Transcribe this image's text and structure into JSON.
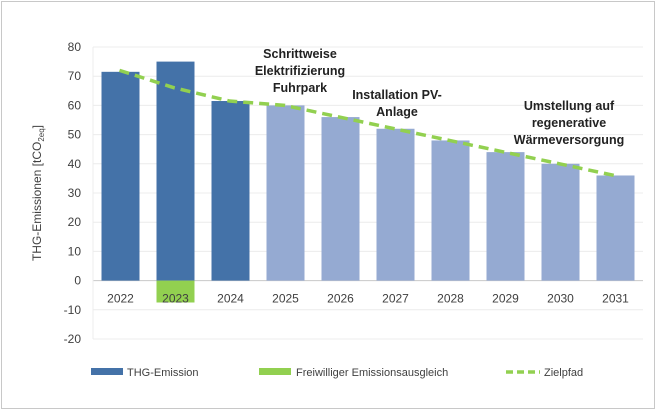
{
  "chart_data": {
    "type": "bar",
    "title": "",
    "xlabel": "",
    "ylabel": "THG-Emissionen [tCO2eq]",
    "ylabel_parts": {
      "main": "THG-Emissionen [tCO",
      "sub": "2eq",
      "end": "]"
    },
    "ylim": [
      -20,
      80
    ],
    "yticks": [
      80,
      70,
      60,
      50,
      40,
      30,
      20,
      10,
      0,
      -10,
      -20
    ],
    "grid": true,
    "categories": [
      "2022",
      "2023",
      "2024",
      "2025",
      "2026",
      "2027",
      "2028",
      "2029",
      "2030",
      "2031"
    ],
    "series": [
      {
        "name": "THG-Emission",
        "type": "bar",
        "values": [
          71.5,
          75,
          61.5,
          60,
          56,
          52,
          48,
          44,
          40,
          36
        ],
        "colors": [
          "#4472a8",
          "#4472a8",
          "#4472a8",
          "#95aad2",
          "#95aad2",
          "#95aad2",
          "#95aad2",
          "#95aad2",
          "#95aad2",
          "#95aad2"
        ]
      },
      {
        "name": "Freiwilliger Emissionsausgleich",
        "type": "bar",
        "values": [
          0,
          -7.5,
          0,
          0,
          0,
          0,
          0,
          0,
          0,
          0
        ],
        "color": "#92d050"
      },
      {
        "name": "Zielpfad",
        "type": "line",
        "style": "dashed",
        "values": [
          72,
          66,
          61.5,
          60,
          56,
          52,
          48,
          44,
          40,
          36
        ],
        "color": "#92d050"
      }
    ],
    "annotations": [
      {
        "lines": [
          "Schrittweise",
          "Elektrifizierung",
          "Fuhrpark"
        ],
        "near": "2025"
      },
      {
        "lines": [
          "Installation PV-",
          "Anlage"
        ],
        "near": "2027"
      },
      {
        "lines": [
          "Umstellung auf",
          "regenerative",
          "Wärmeversorgung"
        ],
        "near": "2030"
      }
    ],
    "legend": {
      "placement": "bottom",
      "entries": [
        "THG-Emission",
        "Freiwilliger Emissionsausgleich",
        "Zielpfad"
      ]
    }
  }
}
